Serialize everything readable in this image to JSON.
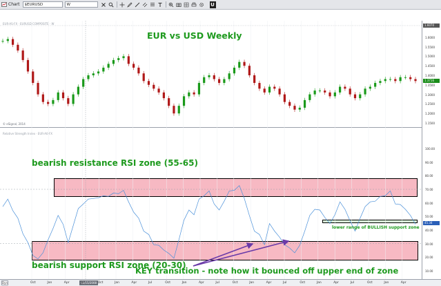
{
  "toolbar": {
    "tab_label": "Chart",
    "symbol_value": "$EURUSD",
    "timeframe_value": "W",
    "icons": [
      "close-icon",
      "search-icon",
      "crosshair-icon",
      "pencil-icon",
      "line-icon",
      "channel-icon",
      "fibonacci-icon",
      "text-icon",
      "zoom-icon",
      "camera-icon",
      "grid-icon",
      "print-icon",
      "settings-icon"
    ],
    "u_label": "U"
  },
  "price_pane": {
    "study_title": "EUR-AS-FX · EURUSD COMPOSITE · W",
    "credit": "© eSignal, 2014",
    "annotation": "EUR vs USD Weekly"
  },
  "rsi_pane": {
    "study_title": "Relative Strength Index · EUR-A0-FX",
    "resistance_label": "bearish resistance RSI zone (55-65)",
    "support_label": "bearish support RSI zone (20-30)",
    "key_label": "KEY transition - note how it bounced off upper end of zone",
    "bullish_label": "lower range of BULLISH support zone"
  },
  "axis": {
    "price_ticks": [
      "1.6000",
      "1.5500",
      "1.5000",
      "1.4500",
      "1.4000",
      "1.3500",
      "1.3000",
      "1.2500",
      "1.2000",
      "1.1500"
    ],
    "price_badge_top": "1.6070",
    "price_badge_last": "1.3716",
    "rsi_ticks": [
      "100.00",
      "90.00",
      "80.00",
      "70.00",
      "60.00",
      "50.00",
      "40.00",
      "30.00",
      "20.00",
      "10.00"
    ],
    "rsi_badge": "45.34",
    "colors": {
      "price_badge": "#1a8c1a",
      "rsi_badge": "#2a5fb8",
      "top_badge": "#555555"
    }
  },
  "xaxis": {
    "labels": [
      "Oct",
      "Jan",
      "Apr",
      "Jul",
      "Oct",
      "Jan",
      "Apr",
      "Jul",
      "Oct",
      "Jan",
      "Apr",
      "Jul",
      "Oct",
      "Jan",
      "Apr",
      "Jul",
      "Oct",
      "Jan",
      "Apr",
      "Jul",
      "Oct",
      "Jan",
      "Apr"
    ],
    "button_label": "Dyn",
    "cursor_label": "08/15/2008"
  },
  "chart_data": {
    "type": "line",
    "price_series": {
      "name": "EURUSD",
      "values": [
        1.58,
        1.59,
        1.56,
        1.53,
        1.48,
        1.42,
        1.36,
        1.3,
        1.26,
        1.25,
        1.27,
        1.31,
        1.28,
        1.25,
        1.3,
        1.34,
        1.38,
        1.4,
        1.41,
        1.42,
        1.44,
        1.46,
        1.48,
        1.49,
        1.5,
        1.46,
        1.44,
        1.41,
        1.37,
        1.35,
        1.33,
        1.31,
        1.28,
        1.24,
        1.2,
        1.24,
        1.29,
        1.31,
        1.3,
        1.36,
        1.39,
        1.4,
        1.38,
        1.36,
        1.38,
        1.41,
        1.44,
        1.47,
        1.45,
        1.4,
        1.36,
        1.33,
        1.31,
        1.34,
        1.33,
        1.3,
        1.26,
        1.24,
        1.22,
        1.23,
        1.27,
        1.3,
        1.32,
        1.32,
        1.31,
        1.29,
        1.31,
        1.34,
        1.33,
        1.3,
        1.28,
        1.3,
        1.33,
        1.34,
        1.36,
        1.37,
        1.38,
        1.38,
        1.37,
        1.39,
        1.39,
        1.38,
        1.37
      ]
    },
    "rsi_series": {
      "name": "RSI",
      "values": [
        58,
        62,
        55,
        48,
        38,
        30,
        22,
        18,
        24,
        32,
        42,
        50,
        45,
        30,
        44,
        55,
        60,
        62,
        64,
        63,
        66,
        64,
        68,
        66,
        70,
        60,
        54,
        48,
        40,
        36,
        30,
        28,
        26,
        22,
        20,
        32,
        48,
        54,
        52,
        62,
        66,
        68,
        60,
        54,
        62,
        68,
        70,
        72,
        64,
        50,
        40,
        36,
        30,
        44,
        40,
        34,
        30,
        26,
        24,
        28,
        40,
        50,
        56,
        54,
        50,
        44,
        52,
        60,
        56,
        46,
        40,
        48,
        58,
        60,
        62,
        64,
        66,
        68,
        60,
        58,
        56,
        50,
        45
      ]
    },
    "rsi_zones": {
      "resistance": [
        55,
        65
      ],
      "support": [
        20,
        30
      ],
      "bullish_support_low": 40
    },
    "price_ylim": [
      1.15,
      1.65
    ],
    "rsi_ylim": [
      10,
      100
    ]
  }
}
